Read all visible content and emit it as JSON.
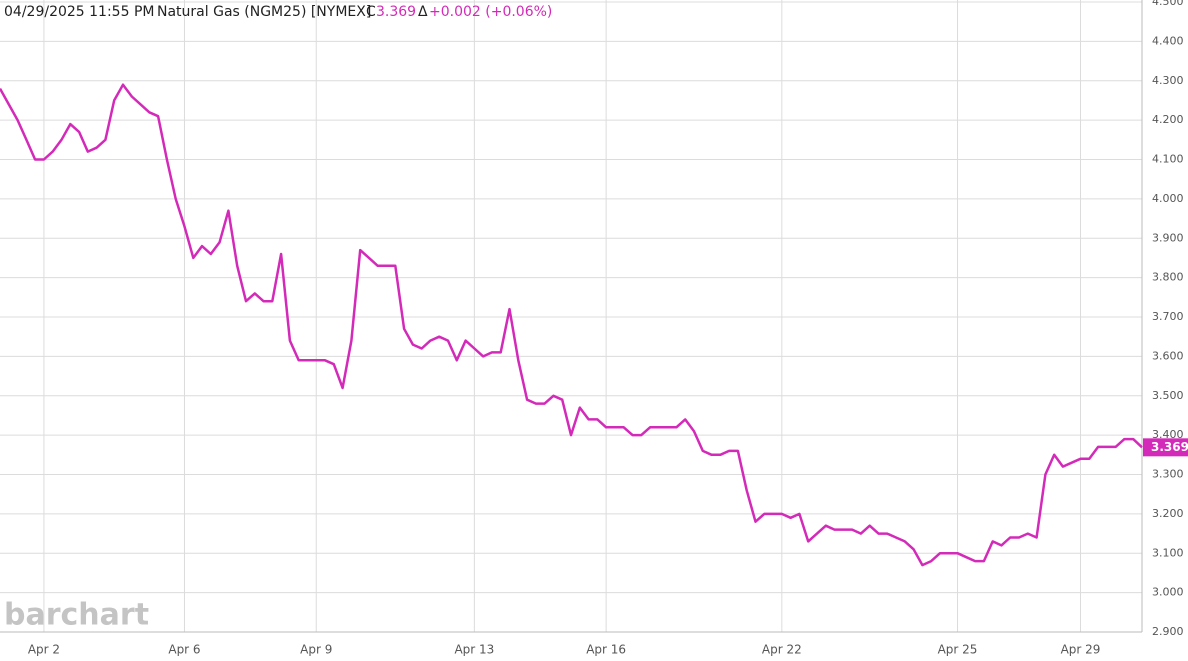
{
  "chart_data": {
    "type": "line",
    "header": {
      "datetime": "04/29/2025  11:55 PM",
      "symbol": "Natural Gas (NGM25) [NYMEX]",
      "close_label": "C",
      "close": "3.369",
      "change_label": "Δ",
      "change": "+0.002 (+0.06%)"
    },
    "watermark": "barchart",
    "categories": [
      null,
      null,
      null,
      null,
      null,
      "Apr 2",
      null,
      null,
      null,
      null,
      null,
      null,
      null,
      null,
      null,
      null,
      null,
      null,
      null,
      null,
      null,
      "Apr 6",
      null,
      null,
      null,
      null,
      null,
      null,
      null,
      null,
      null,
      null,
      null,
      null,
      null,
      null,
      "Apr 9",
      null,
      null,
      null,
      null,
      null,
      null,
      null,
      null,
      null,
      null,
      null,
      null,
      null,
      null,
      null,
      null,
      null,
      "Apr 13",
      null,
      null,
      null,
      null,
      null,
      null,
      null,
      null,
      null,
      null,
      null,
      null,
      null,
      null,
      "Apr 16",
      null,
      null,
      null,
      null,
      null,
      null,
      null,
      null,
      null,
      null,
      null,
      null,
      null,
      null,
      null,
      null,
      null,
      null,
      null,
      "Apr 22",
      null,
      null,
      null,
      null,
      null,
      null,
      null,
      null,
      null,
      null,
      null,
      null,
      null,
      null,
      null,
      null,
      null,
      null,
      null,
      "Apr 25",
      null,
      null,
      null,
      null,
      null,
      null,
      null,
      null,
      null,
      null,
      null,
      null,
      null,
      "Apr 29",
      null,
      null,
      null,
      null,
      null,
      null,
      null
    ],
    "series": [
      {
        "name": "NGM25",
        "color": "#d42ab9",
        "values": [
          4.28,
          4.24,
          4.2,
          4.15,
          4.1,
          4.1,
          4.12,
          4.15,
          4.19,
          4.17,
          4.12,
          4.13,
          4.15,
          4.25,
          4.29,
          4.26,
          4.24,
          4.22,
          4.21,
          4.1,
          4.0,
          3.93,
          3.85,
          3.88,
          3.86,
          3.89,
          3.97,
          3.83,
          3.74,
          3.76,
          3.74,
          3.74,
          3.86,
          3.64,
          3.59,
          3.59,
          3.59,
          3.59,
          3.58,
          3.52,
          3.64,
          3.87,
          3.85,
          3.83,
          3.83,
          3.83,
          3.67,
          3.63,
          3.62,
          3.64,
          3.65,
          3.64,
          3.59,
          3.64,
          3.62,
          3.6,
          3.61,
          3.61,
          3.72,
          3.59,
          3.49,
          3.48,
          3.48,
          3.5,
          3.49,
          3.4,
          3.47,
          3.44,
          3.44,
          3.42,
          3.42,
          3.42,
          3.4,
          3.4,
          3.42,
          3.42,
          3.42,
          3.42,
          3.44,
          3.41,
          3.36,
          3.35,
          3.35,
          3.36,
          3.36,
          3.26,
          3.18,
          3.2,
          3.2,
          3.2,
          3.19,
          3.2,
          3.13,
          3.15,
          3.17,
          3.16,
          3.16,
          3.16,
          3.15,
          3.17,
          3.15,
          3.15,
          3.14,
          3.13,
          3.11,
          3.07,
          3.08,
          3.1,
          3.1,
          3.1,
          3.09,
          3.08,
          3.08,
          3.13,
          3.12,
          3.14,
          3.14,
          3.15,
          3.14,
          3.3,
          3.35,
          3.32,
          3.33,
          3.34,
          3.34,
          3.37,
          3.37,
          3.37,
          3.39,
          3.39,
          3.369
        ]
      }
    ],
    "ylim": [
      2.9,
      4.5
    ],
    "yticks": [
      {
        "value": 2.9,
        "label": "2.900"
      },
      {
        "value": 3.0,
        "label": "3.000"
      },
      {
        "value": 3.1,
        "label": "3.100"
      },
      {
        "value": 3.2,
        "label": "3.200"
      },
      {
        "value": 3.3,
        "label": "3.300"
      },
      {
        "value": 3.4,
        "label": "3.400"
      },
      {
        "value": 3.5,
        "label": "3.500"
      },
      {
        "value": 3.6,
        "label": "3.600"
      },
      {
        "value": 3.7,
        "label": "3.700"
      },
      {
        "value": 3.8,
        "label": "3.800"
      },
      {
        "value": 3.9,
        "label": "3.900"
      },
      {
        "value": 4.0,
        "label": "4.000"
      },
      {
        "value": 4.1,
        "label": "4.100"
      },
      {
        "value": 4.2,
        "label": "4.200"
      },
      {
        "value": 4.3,
        "label": "4.300"
      },
      {
        "value": 4.4,
        "label": "4.400"
      },
      {
        "value": 4.5,
        "label": "4.500"
      }
    ],
    "grid": true
  }
}
